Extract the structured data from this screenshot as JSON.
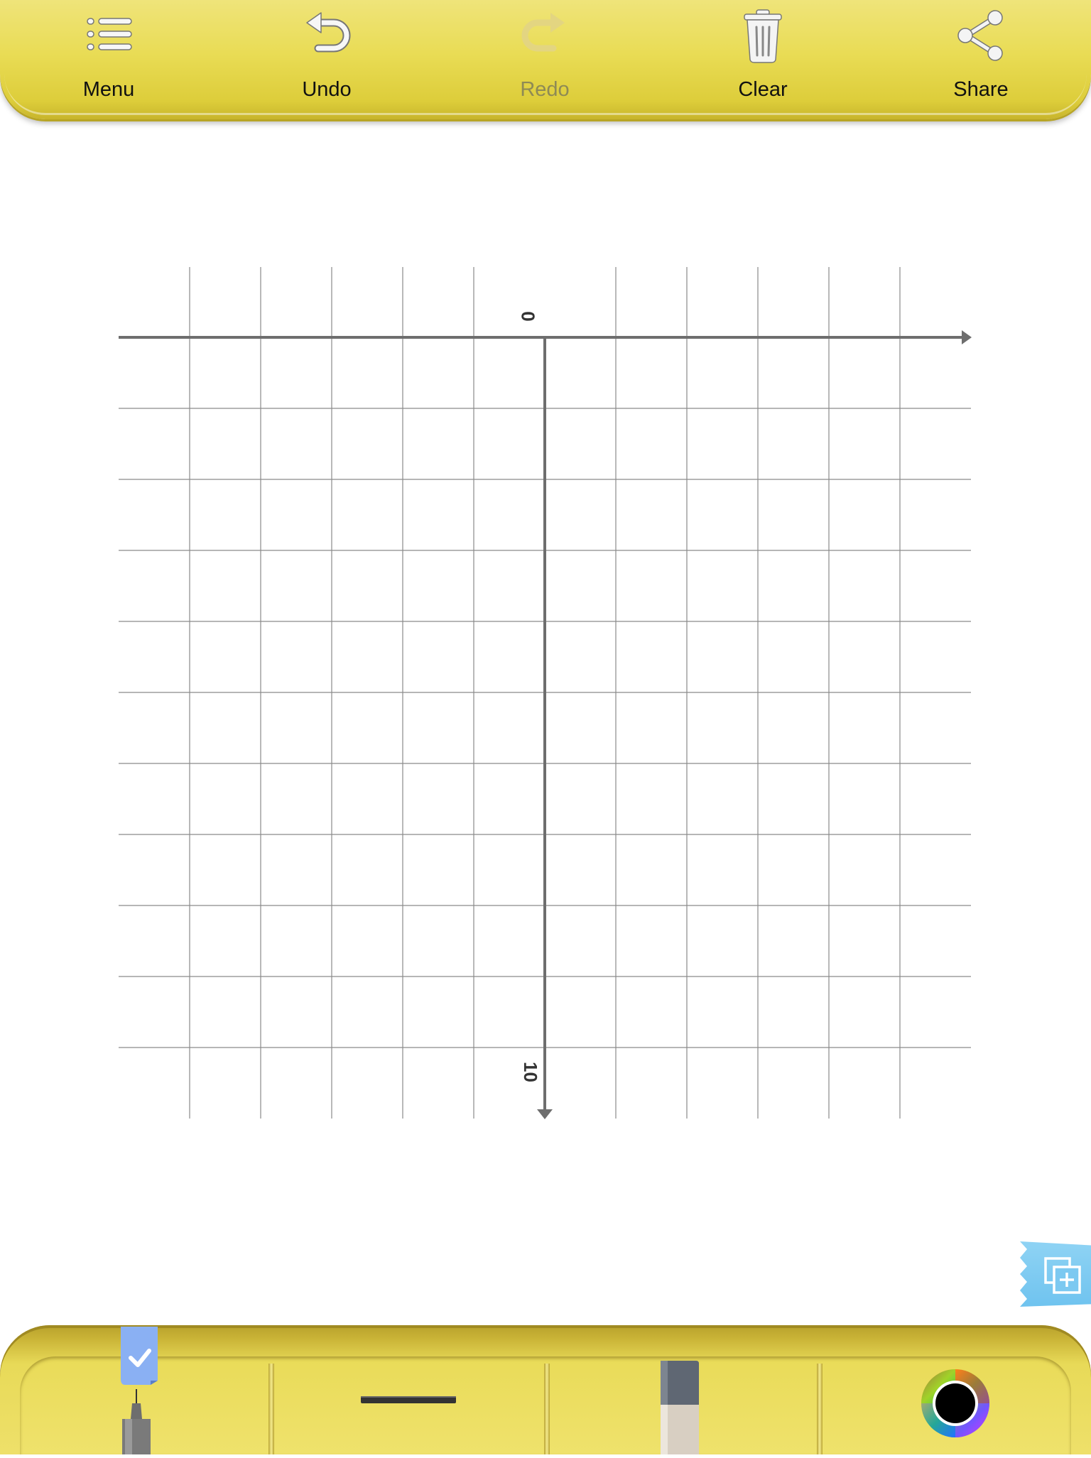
{
  "toolbar": {
    "menu_label": "Menu",
    "undo_label": "Undo",
    "redo_label": "Redo",
    "clear_label": "Clear",
    "share_label": "Share",
    "redo_enabled": false
  },
  "graph": {
    "y_axis_top_label": "0",
    "y_axis_bottom_label": "10",
    "grid_color": "#8a8a8a",
    "axis_color": "#6e6e6e"
  },
  "tools": {
    "selected": "pen",
    "items": [
      "pen-icon",
      "line-width-icon",
      "eraser-icon",
      "color-wheel-icon"
    ],
    "current_color": "#000000"
  },
  "colors": {
    "toolbar": "#e9dc55",
    "tab": "#7cc9f1"
  }
}
